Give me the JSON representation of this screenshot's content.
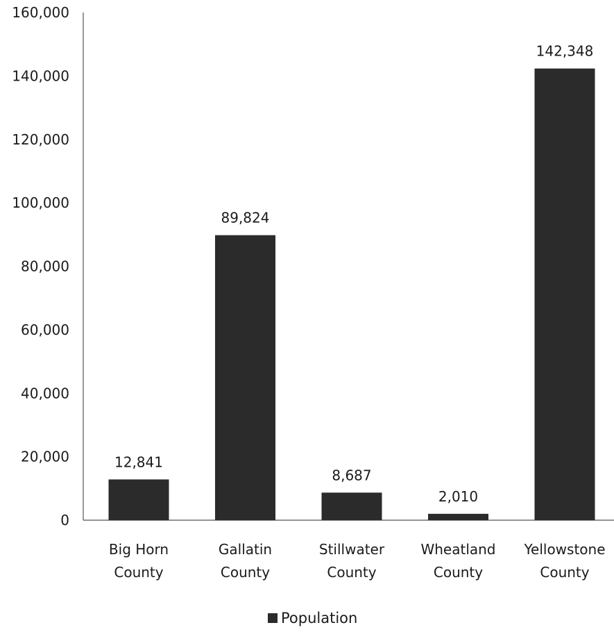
{
  "chart_data": {
    "type": "bar",
    "categories": [
      [
        "Big Horn",
        "County"
      ],
      [
        "Gallatin",
        "County"
      ],
      [
        "Stillwater",
        "County"
      ],
      [
        "Wheatland",
        "County"
      ],
      [
        "Yellowstone",
        "County"
      ]
    ],
    "series": [
      {
        "name": "Population",
        "values": [
          12841,
          89824,
          8687,
          2010,
          142348
        ],
        "value_labels": [
          "12,841",
          "89,824",
          "8,687",
          "2,010",
          "142,348"
        ],
        "color": "#2b2b2b"
      }
    ],
    "ylim": [
      0,
      160000
    ],
    "yticks": [
      0,
      20000,
      40000,
      60000,
      80000,
      100000,
      120000,
      140000,
      160000
    ],
    "ytick_labels": [
      "0",
      "20,000",
      "40,000",
      "60,000",
      "80,000",
      "100,000",
      "120,000",
      "140,000",
      "160,000"
    ],
    "grid": false,
    "legend_position": "bottom-center",
    "title": "",
    "xlabel": "",
    "ylabel": ""
  },
  "legend": {
    "label": "Population"
  }
}
